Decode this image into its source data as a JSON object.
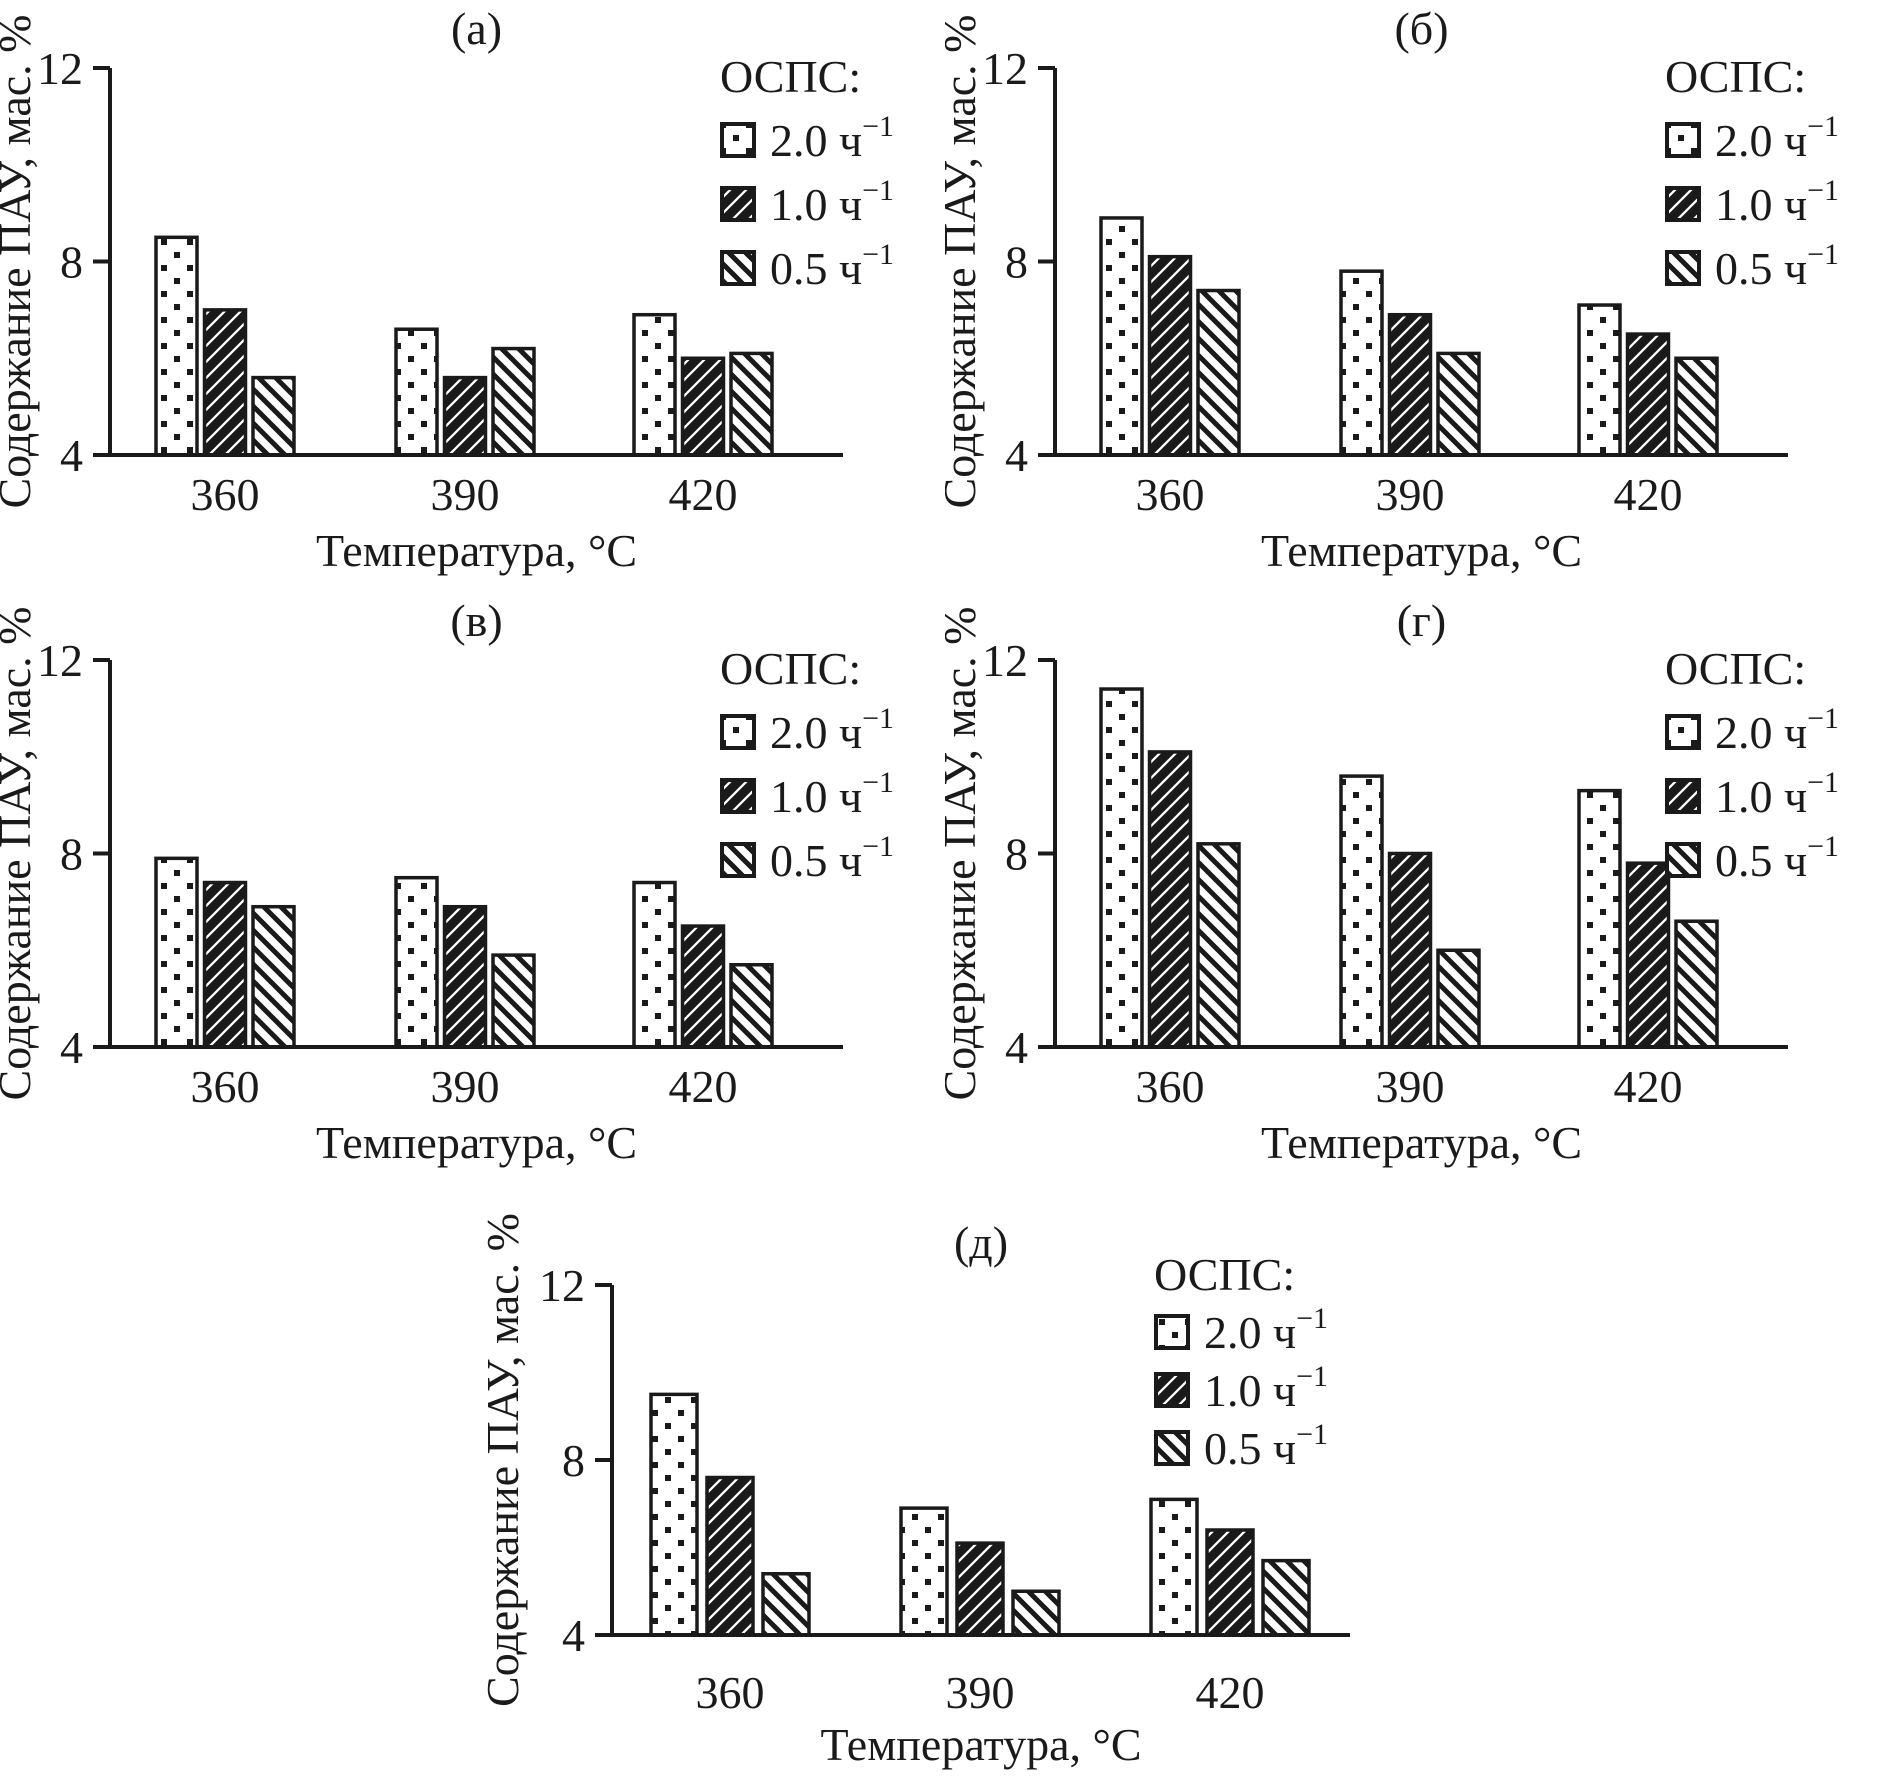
{
  "figure": {
    "background": "#ffffff",
    "ink": "#1a1a1a",
    "legend": {
      "title": "ОСПС:",
      "items": [
        {
          "label": "2.0 ч",
          "sup": "−1",
          "full": "2.0 ч⁻¹",
          "pattern": "dots"
        },
        {
          "label": "1.0 ч",
          "sup": "−1",
          "full": "1.0 ч⁻¹",
          "pattern": "hatch-dark"
        },
        {
          "label": "0.5 ч",
          "sup": "−1",
          "full": "0.5 ч⁻¹",
          "pattern": "hatch-light"
        }
      ]
    },
    "axes": {
      "xlabel": "Температура, °C",
      "ylabel": "Содержание ПАУ, мас. %",
      "yticks": [
        4,
        8,
        12
      ],
      "ylim": [
        4,
        12
      ],
      "categories": [
        "360",
        "390",
        "420"
      ]
    }
  },
  "chart_data": [
    {
      "type": "bar",
      "panel_label": "(а)",
      "xlabel": "Температура, °C",
      "ylabel": "Содержание ПАУ, мас. %",
      "categories": [
        "360",
        "390",
        "420"
      ],
      "ylim": [
        4,
        12
      ],
      "yticks": [
        4,
        8,
        12
      ],
      "grid": false,
      "legend_position": "top-right",
      "series": [
        {
          "name": "2.0 ч⁻¹",
          "pattern": "dots",
          "values": [
            8.5,
            6.6,
            6.9
          ]
        },
        {
          "name": "1.0 ч⁻¹",
          "pattern": "hatch-dark",
          "values": [
            7.0,
            5.6,
            6.0
          ]
        },
        {
          "name": "0.5 ч⁻¹",
          "pattern": "hatch-light",
          "values": [
            5.6,
            6.2,
            6.1
          ]
        }
      ]
    },
    {
      "type": "bar",
      "panel_label": "(б)",
      "xlabel": "Температура, °C",
      "ylabel": "Содержание ПАУ, мас. %",
      "categories": [
        "360",
        "390",
        "420"
      ],
      "ylim": [
        4,
        12
      ],
      "yticks": [
        4,
        8,
        12
      ],
      "grid": false,
      "legend_position": "top-right",
      "series": [
        {
          "name": "2.0 ч⁻¹",
          "pattern": "dots",
          "values": [
            8.9,
            7.8,
            7.1
          ]
        },
        {
          "name": "1.0 ч⁻¹",
          "pattern": "hatch-dark",
          "values": [
            8.1,
            6.9,
            6.5
          ]
        },
        {
          "name": "0.5 ч⁻¹",
          "pattern": "hatch-light",
          "values": [
            7.4,
            6.1,
            6.0
          ]
        }
      ]
    },
    {
      "type": "bar",
      "panel_label": "(в)",
      "xlabel": "Температура, °C",
      "ylabel": "Содержание ПАУ, мас. %",
      "categories": [
        "360",
        "390",
        "420"
      ],
      "ylim": [
        4,
        12
      ],
      "yticks": [
        4,
        8,
        12
      ],
      "grid": false,
      "legend_position": "top-right",
      "series": [
        {
          "name": "2.0 ч⁻¹",
          "pattern": "dots",
          "values": [
            7.9,
            7.5,
            7.4
          ]
        },
        {
          "name": "1.0 ч⁻¹",
          "pattern": "hatch-dark",
          "values": [
            7.4,
            6.9,
            6.5
          ]
        },
        {
          "name": "0.5 ч⁻¹",
          "pattern": "hatch-light",
          "values": [
            6.9,
            5.9,
            5.7
          ]
        }
      ]
    },
    {
      "type": "bar",
      "panel_label": "(г)",
      "xlabel": "Температура, °C",
      "ylabel": "Содержание ПАУ, мас. %",
      "categories": [
        "360",
        "390",
        "420"
      ],
      "ylim": [
        4,
        12
      ],
      "yticks": [
        4,
        8,
        12
      ],
      "grid": false,
      "legend_position": "top-right",
      "series": [
        {
          "name": "2.0 ч⁻¹",
          "pattern": "dots",
          "values": [
            11.4,
            9.6,
            9.3
          ]
        },
        {
          "name": "1.0 ч⁻¹",
          "pattern": "hatch-dark",
          "values": [
            10.1,
            8.0,
            7.8
          ]
        },
        {
          "name": "0.5 ч⁻¹",
          "pattern": "hatch-light",
          "values": [
            8.2,
            6.0,
            6.6
          ]
        }
      ]
    },
    {
      "type": "bar",
      "panel_label": "(д)",
      "xlabel": "Температура, °C",
      "ylabel": "Содержание ПАУ, мас. %",
      "categories": [
        "360",
        "390",
        "420"
      ],
      "ylim": [
        4,
        12
      ],
      "yticks": [
        4,
        8,
        12
      ],
      "grid": false,
      "legend_position": "top-right",
      "series": [
        {
          "name": "2.0 ч⁻¹",
          "pattern": "dots",
          "values": [
            9.5,
            6.9,
            7.1
          ]
        },
        {
          "name": "1.0 ч⁻¹",
          "pattern": "hatch-dark",
          "values": [
            7.6,
            6.1,
            6.4
          ]
        },
        {
          "name": "0.5 ч⁻¹",
          "pattern": "hatch-light",
          "values": [
            5.4,
            5.0,
            5.7
          ]
        }
      ]
    }
  ]
}
